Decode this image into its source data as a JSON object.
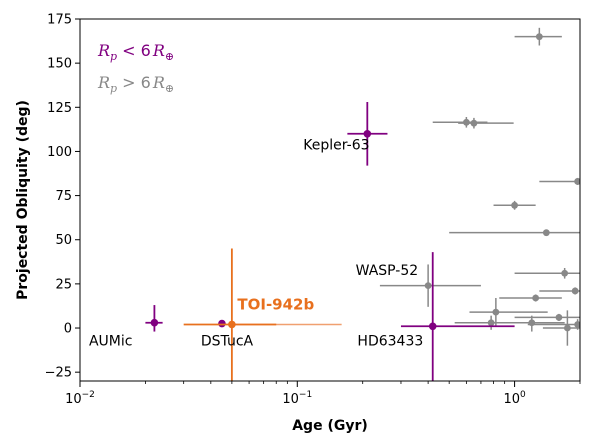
{
  "chart_data": {
    "type": "scatter",
    "xlabel": "Age (Gyr)",
    "ylabel": "Projected Obliquity (deg)",
    "xscale": "log",
    "xlim": [
      0.01,
      2.0
    ],
    "ylim": [
      -30,
      175
    ],
    "x_ticks": [
      {
        "value": 0.01,
        "label": "10",
        "exp": "−2"
      },
      {
        "value": 0.1,
        "label": "10",
        "exp": "−1"
      },
      {
        "value": 1,
        "label": "10",
        "exp": "0"
      }
    ],
    "y_ticks": [
      -25,
      0,
      25,
      50,
      75,
      100,
      125,
      150,
      175
    ],
    "grid": false,
    "legend": {
      "placement": "top-left",
      "entries": [
        {
          "base": "R",
          "sub": "p",
          "mid": " < 6",
          "base2": "R",
          "sub2": "⊕",
          "color": "#800080"
        },
        {
          "base": "R",
          "sub": "p",
          "mid": " > 6",
          "base2": "R",
          "sub2": "⊕",
          "color": "#888888"
        }
      ]
    },
    "colors": {
      "small": "#800080",
      "large": "#888888",
      "highlight": "#E8701E"
    },
    "series": [
      {
        "name": "small",
        "color": "#800080",
        "points": [
          {
            "x": 0.022,
            "y": 3,
            "xerr": [
              0.002,
              0.002
            ],
            "yerr": [
              5,
              10
            ]
          },
          {
            "x": 0.045,
            "y": 2.5,
            "xerr": [
              0.0,
              0.0
            ],
            "yerr": [
              0,
              0
            ]
          },
          {
            "x": 0.21,
            "y": 110,
            "xerr": [
              0.04,
              0.05
            ],
            "yerr": [
              18,
              18
            ]
          },
          {
            "x": 0.42,
            "y": 1,
            "xerr": [
              0.12,
              0.58
            ],
            "yerr": [
              40,
              42
            ]
          }
        ]
      },
      {
        "name": "large",
        "color": "#888888",
        "points": [
          {
            "x": 1.3,
            "y": 165,
            "xerr": [
              0.3,
              0.35
            ],
            "yerr": [
              5,
              5
            ]
          },
          {
            "x": 0.6,
            "y": 116.5,
            "xerr": [
              0.18,
              0.15
            ],
            "yerr": [
              3,
              3
            ]
          },
          {
            "x": 0.65,
            "y": 116,
            "xerr": [
              0.1,
              0.34
            ],
            "yerr": [
              3,
              3
            ]
          },
          {
            "x": 1.0,
            "y": 69.5,
            "xerr": [
              0.2,
              0.25
            ],
            "yerr": [
              2.5,
              2.5
            ]
          },
          {
            "x": 1.95,
            "y": 83,
            "xerr": [
              0.65,
              0.05
            ],
            "yerr": [
              2,
              2
            ]
          },
          {
            "x": 1.7,
            "y": 31,
            "xerr": [
              0.7,
              0.3
            ],
            "yerr": [
              3,
              3
            ]
          },
          {
            "x": 1.9,
            "y": 21,
            "xerr": [
              0.6,
              0.1
            ],
            "yerr": [
              2,
              2
            ]
          },
          {
            "x": 1.25,
            "y": 17,
            "xerr": [
              0.4,
              0.4
            ],
            "yerr": [
              2,
              2
            ]
          },
          {
            "x": 0.82,
            "y": 9,
            "xerr": [
              0.2,
              0.6
            ],
            "yerr": [
              8,
              8
            ]
          },
          {
            "x": 1.6,
            "y": 6,
            "xerr": [
              0.6,
              0.4
            ],
            "yerr": [
              2,
              2
            ]
          },
          {
            "x": 1.75,
            "y": 0,
            "xerr": [
              0.4,
              0.25
            ],
            "yerr": [
              10,
              10
            ]
          },
          {
            "x": 1.95,
            "y": 2,
            "xerr": [
              0.8,
              0.05
            ],
            "yerr": [
              3,
              3
            ]
          },
          {
            "x": 1.2,
            "y": 3,
            "xerr": [
              0.2,
              0.5
            ],
            "yerr": [
              5,
              4
            ]
          },
          {
            "x": 0.78,
            "y": 3,
            "xerr": [
              0.25,
              0.6
            ],
            "yerr": [
              4,
              4
            ]
          },
          {
            "x": 0.4,
            "y": 24,
            "xerr": [
              0.16,
              0.3
            ],
            "yerr": [
              12,
              12
            ]
          },
          {
            "x": 1.4,
            "y": 54,
            "xerr": [
              0.9,
              0.6
            ],
            "yerr": [
              0,
              0
            ]
          }
        ]
      },
      {
        "name": "highlight",
        "color": "#E8701E",
        "points": [
          {
            "x": 0.05,
            "y": 2,
            "xerr": [
              0.02,
              0.03
            ],
            "yerr": [
              32,
              43
            ]
          }
        ]
      }
    ],
    "extra_bars": [
      {
        "x_from": 0.05,
        "x_to": 0.16,
        "y": 2,
        "color": "#F0A070"
      }
    ],
    "annotations": [
      {
        "text": "Kepler-63",
        "x": 0.215,
        "y": 101,
        "anchor": "end",
        "style": "normal"
      },
      {
        "text": "WASP-52",
        "x": 0.36,
        "y": 30,
        "anchor": "end",
        "style": "normal"
      },
      {
        "text": "HD63433",
        "x": 0.38,
        "y": -10,
        "anchor": "end",
        "style": "normal"
      },
      {
        "text": "AUMic",
        "x": 0.011,
        "y": -10,
        "anchor": "start",
        "style": "normal"
      },
      {
        "text": "DSTucA",
        "x": 0.036,
        "y": -10,
        "anchor": "start",
        "style": "normal"
      },
      {
        "text": "TOI-942b",
        "x": 0.053,
        "y": 10.5,
        "anchor": "start",
        "style": "highlight"
      }
    ]
  }
}
